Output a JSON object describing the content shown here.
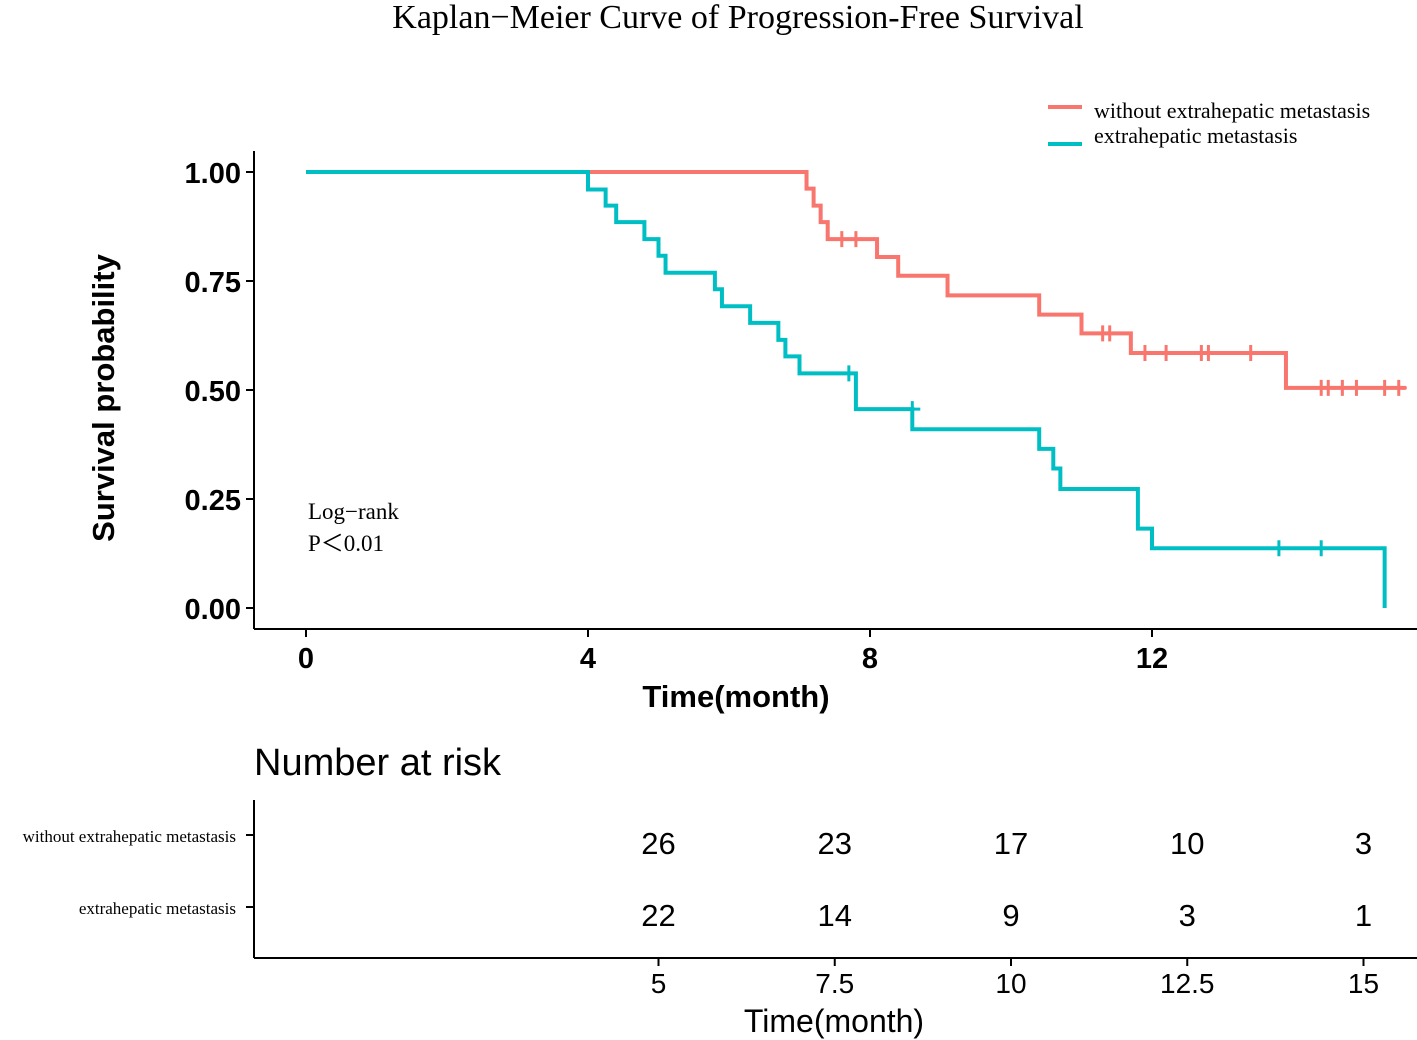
{
  "chart_data": {
    "type": "line",
    "subtype": "kaplan-meier",
    "title": "Kaplan−Meier Curve of Progression-Free Survival",
    "xlabel": "Time(month)",
    "ylabel": "Survival probability",
    "xlim": [
      -0.7,
      15.7
    ],
    "ylim": [
      0,
      1
    ],
    "xticks": [
      0,
      4,
      8,
      12
    ],
    "xtick_labels": [
      "0",
      "4",
      "8",
      "12"
    ],
    "yticks": [
      0,
      0.25,
      0.5,
      0.75,
      1.0
    ],
    "ytick_labels": [
      "0.00",
      "0.25",
      "0.50",
      "0.75",
      "1.00"
    ],
    "legend_position": "top-right",
    "annotation": {
      "line1": "Log−rank",
      "line2": "P＜0.01"
    },
    "series": [
      {
        "name": "without extrahepatic metastasis",
        "color": "#F8766D",
        "steps": [
          [
            0,
            1.0
          ],
          [
            7.1,
            0.962
          ],
          [
            7.2,
            0.923
          ],
          [
            7.3,
            0.885
          ],
          [
            7.4,
            0.846
          ],
          [
            8.1,
            0.805
          ],
          [
            8.4,
            0.762
          ],
          [
            9.1,
            0.717
          ],
          [
            10.4,
            0.673
          ],
          [
            11.0,
            0.63
          ],
          [
            11.7,
            0.585
          ],
          [
            13.9,
            0.505
          ],
          [
            15.6,
            0.505
          ]
        ],
        "censors": [
          [
            7.6,
            0.846
          ],
          [
            7.8,
            0.846
          ],
          [
            11.3,
            0.63
          ],
          [
            11.4,
            0.63
          ],
          [
            11.9,
            0.585
          ],
          [
            12.2,
            0.585
          ],
          [
            12.7,
            0.585
          ],
          [
            12.8,
            0.585
          ],
          [
            13.4,
            0.585
          ],
          [
            14.4,
            0.505
          ],
          [
            14.5,
            0.505
          ],
          [
            14.7,
            0.505
          ],
          [
            14.9,
            0.505
          ],
          [
            15.3,
            0.505
          ],
          [
            15.5,
            0.505
          ]
        ]
      },
      {
        "name": "extrahepatic metastasis",
        "color": "#00BFC4",
        "steps": [
          [
            0,
            1.0
          ],
          [
            4.0,
            0.96
          ],
          [
            4.25,
            0.923
          ],
          [
            4.4,
            0.885
          ],
          [
            4.8,
            0.846
          ],
          [
            5.0,
            0.808
          ],
          [
            5.1,
            0.769
          ],
          [
            5.8,
            0.731
          ],
          [
            5.9,
            0.692
          ],
          [
            6.3,
            0.654
          ],
          [
            6.7,
            0.615
          ],
          [
            6.8,
            0.577
          ],
          [
            7.0,
            0.538
          ],
          [
            7.8,
            0.456
          ],
          [
            8.6,
            0.41
          ],
          [
            10.4,
            0.365
          ],
          [
            10.6,
            0.32
          ],
          [
            10.7,
            0.273
          ],
          [
            11.8,
            0.182
          ],
          [
            12.0,
            0.137
          ],
          [
            15.3,
            0.0
          ]
        ],
        "censors": [
          [
            7.7,
            0.538
          ],
          [
            8.6,
            0.456
          ],
          [
            13.8,
            0.137
          ],
          [
            14.4,
            0.137
          ]
        ]
      }
    ]
  },
  "risk_table": {
    "title": "Number at risk",
    "xlabel": "Time(month)",
    "times": [
      5,
      7.5,
      10,
      12.5,
      15
    ],
    "time_labels": [
      "5",
      "7.5",
      "10",
      "12.5",
      "15"
    ],
    "rows": [
      {
        "label": "without extrahepatic metastasis",
        "counts": [
          "26",
          "23",
          "17",
          "10",
          "3"
        ]
      },
      {
        "label": "extrahepatic metastasis",
        "counts": [
          "22",
          "14",
          "9",
          "3",
          "1"
        ]
      }
    ]
  }
}
